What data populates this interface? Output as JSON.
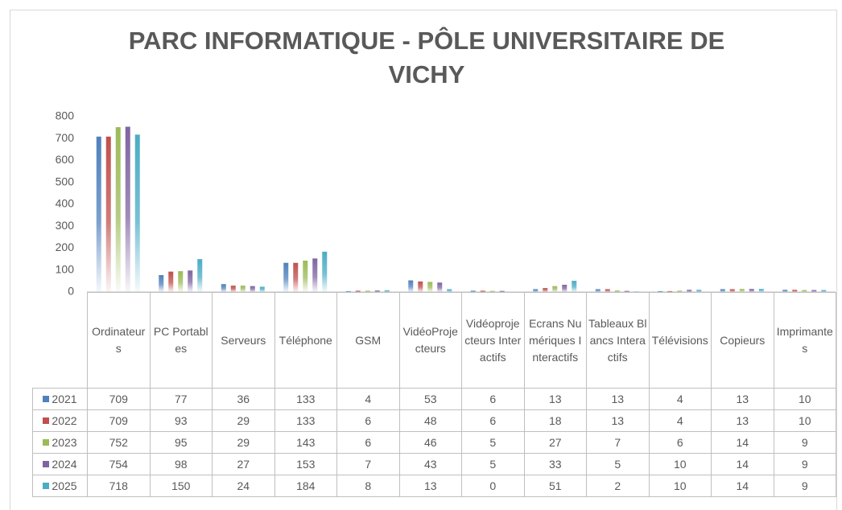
{
  "chart_data": {
    "type": "bar",
    "title": "PARC INFORMATIQUE - PÔLE UNIVERSITAIRE DE VICHY",
    "categories": [
      "Ordinateurs",
      "PC Portables",
      "Serveurs",
      "Téléphone",
      "GSM",
      "VidéoProjecteurs",
      "Vidéoprojecteurs Interactifs",
      "Ecrans Numériques Interactifs",
      "Tableaux Blancs Interactifs",
      "Télévisions",
      "Copieurs",
      "Imprimantes"
    ],
    "series": [
      {
        "name": "2021",
        "color": "#4f81bd",
        "values": [
          709,
          77,
          36,
          133,
          4,
          53,
          6,
          13,
          13,
          4,
          13,
          10
        ]
      },
      {
        "name": "2022",
        "color": "#c0504d",
        "values": [
          709,
          93,
          29,
          133,
          6,
          48,
          6,
          18,
          13,
          4,
          13,
          10
        ]
      },
      {
        "name": "2023",
        "color": "#9bbb59",
        "values": [
          752,
          95,
          29,
          143,
          6,
          46,
          5,
          27,
          7,
          6,
          14,
          9
        ]
      },
      {
        "name": "2024",
        "color": "#8064a2",
        "values": [
          754,
          98,
          27,
          153,
          7,
          43,
          5,
          33,
          5,
          10,
          14,
          9
        ]
      },
      {
        "name": "2025",
        "color": "#4bacc6",
        "values": [
          718,
          150,
          24,
          184,
          8,
          13,
          0,
          51,
          2,
          10,
          14,
          9
        ]
      }
    ],
    "ylim": [
      0,
      800
    ],
    "yticks": [
      0,
      100,
      200,
      300,
      400,
      500,
      600,
      700,
      800
    ],
    "grid": false
  }
}
